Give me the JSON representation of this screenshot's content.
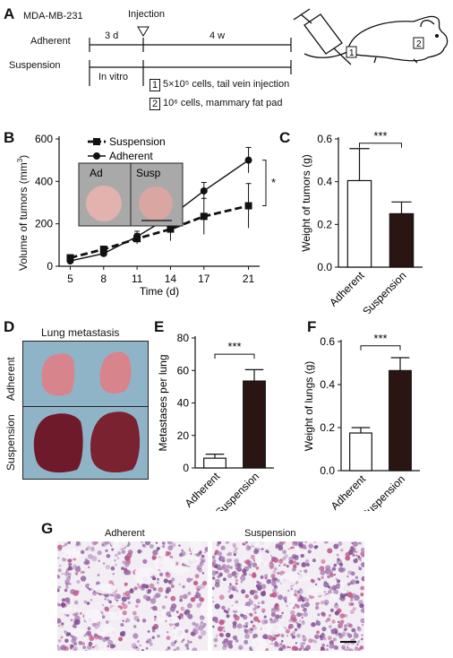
{
  "panels": {
    "A": "A",
    "B": "B",
    "C": "C",
    "D": "D",
    "E": "E",
    "F": "F",
    "G": "G"
  },
  "panelA": {
    "cell_line": "MDA-MB-231",
    "injection": "Injection",
    "adherent": "Adherent",
    "suspension": "Suspension",
    "duration_1": "3 d",
    "duration_2": "4 w",
    "in_vitro": "In vitro",
    "step1_num": "1",
    "step1_text": "5×10⁵ cells, tail vein injection",
    "step2_num": "2",
    "step2_text": "10⁶ cells, mammary fat pad",
    "colors": {
      "line": "#111111"
    }
  },
  "panelB": {
    "legend_suspension": "Suspension",
    "legend_adherent": "Adherent",
    "inset_ad": "Ad",
    "inset_susp": "Susp",
    "significance": "*",
    "ylabel_text": "Volume of tumors (mm",
    "ylabel_sup": "3",
    "ylabel_close": ")",
    "xlabel": "Time (d)"
  },
  "panelD": {
    "title": "Lung metastasis",
    "row_top": "Adherent",
    "row_bottom": "Suspension",
    "colors": {
      "background": "#8fb4c8",
      "lung_light": "#d8848c",
      "lung_dark": "#6e1a2a"
    }
  },
  "panelG": {
    "label_adherent": "Adherent",
    "label_suspension": "Suspension",
    "colors": {
      "stain": "#9a6ca8",
      "space": "#f2eef4"
    }
  },
  "chart_data": [
    {
      "id": "B",
      "type": "line",
      "x": [
        5,
        8,
        11,
        14,
        17,
        21
      ],
      "series": [
        {
          "name": "Suspension",
          "style": "dashed",
          "marker": "square",
          "values": [
            40,
            80,
            130,
            175,
            235,
            285
          ],
          "err": [
            10,
            15,
            25,
            55,
            85,
            105
          ]
        },
        {
          "name": "Adherent",
          "style": "solid",
          "marker": "circle",
          "values": [
            25,
            60,
            140,
            235,
            355,
            500
          ],
          "err": [
            10,
            12,
            25,
            30,
            40,
            60
          ]
        }
      ],
      "xticks": [
        "5",
        "8",
        "11",
        "14",
        "17",
        "21"
      ],
      "yticks": [
        "0",
        "200",
        "400",
        "600"
      ],
      "ylim": [
        0,
        600
      ],
      "xlabel": "Time (d)",
      "ylabel": "Volume of tumors (mm3)",
      "significance": "*"
    },
    {
      "id": "C",
      "type": "bar",
      "categories": [
        "Adherent",
        "Suspension"
      ],
      "values": [
        0.405,
        0.25
      ],
      "err": [
        0.15,
        0.055
      ],
      "fills": [
        "#ffffff",
        "#2a1512"
      ],
      "yticks": [
        "0.0",
        "0.2",
        "0.4",
        "0.6"
      ],
      "ylim": [
        0,
        0.6
      ],
      "ylabel": "Weight of tumors (g)",
      "significance": "***"
    },
    {
      "id": "E",
      "type": "bar",
      "categories": [
        "Adherent",
        "Suspension"
      ],
      "values": [
        6,
        53.5
      ],
      "err": [
        2.5,
        7
      ],
      "fills": [
        "#ffffff",
        "#2a1512"
      ],
      "yticks": [
        "0",
        "20",
        "40",
        "60",
        "80"
      ],
      "ylim": [
        0,
        80
      ],
      "ylabel": "Metastases per lung",
      "significance": "***"
    },
    {
      "id": "F",
      "type": "bar",
      "categories": [
        "Adherent",
        "Suspension"
      ],
      "values": [
        0.175,
        0.465
      ],
      "err": [
        0.025,
        0.06
      ],
      "fills": [
        "#ffffff",
        "#2a1512"
      ],
      "yticks": [
        "0.0",
        "0.2",
        "0.4",
        "0.6"
      ],
      "ylim": [
        0,
        0.6
      ],
      "ylabel": "Weight of lungs (g)",
      "significance": "***"
    }
  ]
}
